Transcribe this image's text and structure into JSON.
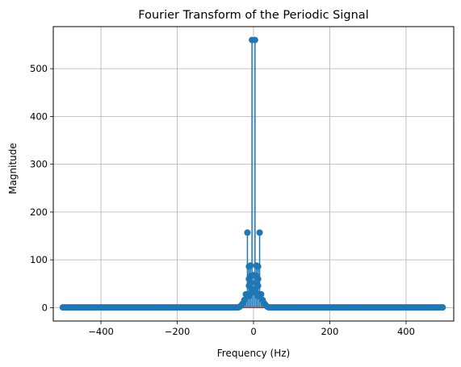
{
  "chart_data": {
    "type": "stem",
    "title": "Fourier Transform of the Periodic Signal",
    "xlabel": "Frequency (Hz)",
    "ylabel": "Magnitude",
    "xlim": [
      -525,
      525
    ],
    "ylim": [
      -28,
      588
    ],
    "x_ticks": [
      -400,
      -200,
      0,
      200,
      400
    ],
    "x_tick_labels": [
      "−400",
      "−200",
      "0",
      "200",
      "400"
    ],
    "y_ticks": [
      0,
      100,
      200,
      300,
      400,
      500
    ],
    "y_tick_labels": [
      "0",
      "100",
      "200",
      "300",
      "400",
      "500"
    ],
    "grid": true,
    "legend": "none",
    "baseline": 0,
    "colors": {
      "stem": "#1f77b4",
      "baseline": "#d62728",
      "grid": "#b0b0b0"
    },
    "x_range": [
      -500,
      496
    ],
    "x_step": 4,
    "peaks": [
      {
        "x": -4,
        "y": 560
      },
      {
        "x": 4,
        "y": 560
      },
      {
        "x": -16,
        "y": 157
      },
      {
        "x": 16,
        "y": 157
      },
      {
        "x": -8,
        "y": 88
      },
      {
        "x": 8,
        "y": 88
      },
      {
        "x": -12,
        "y": 86
      },
      {
        "x": 12,
        "y": 86
      },
      {
        "x": 0,
        "y": 68
      },
      {
        "x": -20,
        "y": 28
      },
      {
        "x": 20,
        "y": 28
      },
      {
        "x": -24,
        "y": 16
      },
      {
        "x": 24,
        "y": 16
      },
      {
        "x": -28,
        "y": 9
      },
      {
        "x": 28,
        "y": 9
      },
      {
        "x": -32,
        "y": 5
      },
      {
        "x": 32,
        "y": 5
      }
    ],
    "mid_points": [
      {
        "x": -8,
        "y": 66
      },
      {
        "x": 8,
        "y": 66
      },
      {
        "x": -12,
        "y": 60
      },
      {
        "x": 12,
        "y": 60
      },
      {
        "x": -8,
        "y": 52
      },
      {
        "x": 8,
        "y": 52
      },
      {
        "x": -12,
        "y": 46
      },
      {
        "x": 12,
        "y": 46
      },
      {
        "x": -4,
        "y": 38
      },
      {
        "x": 4,
        "y": 38
      },
      {
        "x": -8,
        "y": 30
      },
      {
        "x": 8,
        "y": 30
      },
      {
        "x": -12,
        "y": 24
      },
      {
        "x": 12,
        "y": 24
      }
    ]
  }
}
